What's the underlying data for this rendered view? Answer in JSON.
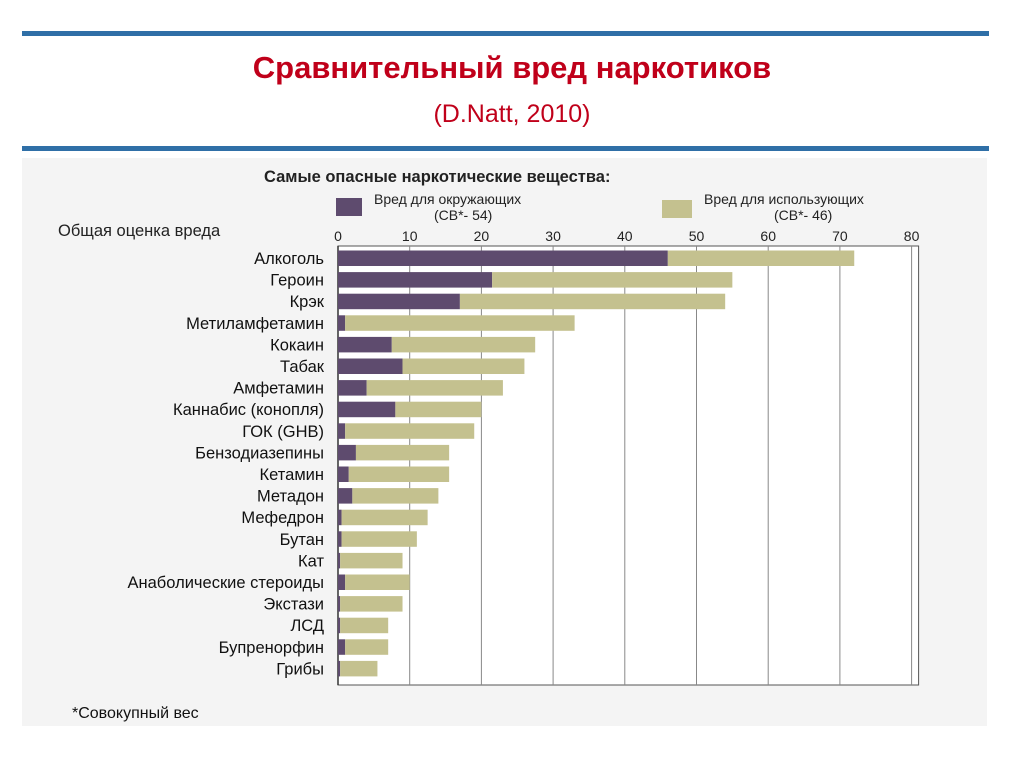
{
  "slide": {
    "title": "Сравнительный вред наркотиков",
    "subtitle": "(D.Natt, 2010)"
  },
  "chart_data": {
    "type": "bar",
    "orientation": "horizontal",
    "stacked": true,
    "title": "Самые опасные наркотические вещества:",
    "xlabel": "Общая оценка вреда",
    "xlim": [
      0,
      80
    ],
    "xticks": [
      0,
      10,
      20,
      30,
      40,
      50,
      60,
      70,
      80
    ],
    "grid": true,
    "legend_position": "top",
    "footnote": "*Совокупный вес",
    "categories": [
      "Алкоголь",
      "Героин",
      "Крэк",
      "Метиламфетамин",
      "Кокаин",
      "Табак",
      "Амфетамин",
      "Каннабис (конопля)",
      "ГОК (GHB)",
      "Бензодиазепины",
      "Кетамин",
      "Метадон",
      "Мефедрон",
      "Бутан",
      "Кат",
      "Анаболические стероиды",
      "Экстази",
      "ЛСД",
      "Бупренорфин",
      "Грибы"
    ],
    "series": [
      {
        "name": "Вред для окружающих",
        "legend_line1": "Вред для окружающих",
        "legend_line2": "(СВ*- 54)",
        "color": "#5e4b6e",
        "values": [
          46,
          21.5,
          17,
          1,
          7.5,
          9,
          4,
          8,
          1,
          2.5,
          1.5,
          2,
          0.5,
          0.5,
          0.3,
          1,
          0.3,
          0.3,
          1,
          0.3
        ]
      },
      {
        "name": "Вред для использующих",
        "legend_line1": "Вред для использующих",
        "legend_line2": "(СВ*- 46)",
        "color": "#c4c18f",
        "values": [
          26,
          33.5,
          37,
          32,
          20,
          17,
          19,
          12,
          18,
          13,
          14,
          12,
          12,
          10.5,
          8.7,
          9,
          8.7,
          6.7,
          6,
          5.2
        ]
      }
    ]
  }
}
